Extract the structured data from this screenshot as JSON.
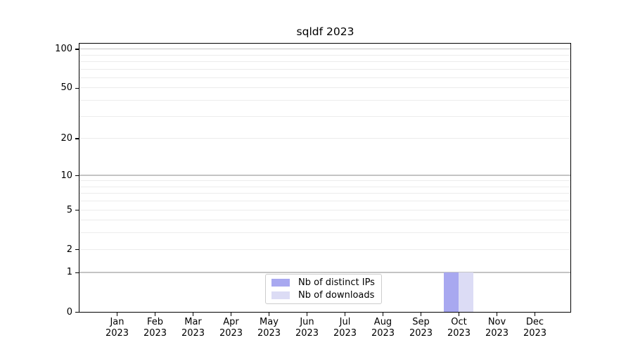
{
  "chart_data": {
    "type": "bar",
    "title": "sqldf 2023",
    "xlabel": "",
    "ylabel": "",
    "yscale": "log1p",
    "ylim": [
      0,
      110
    ],
    "grid": "on",
    "y_ticks": [
      0,
      1,
      2,
      5,
      10,
      20,
      50,
      100
    ],
    "y_gridlines_major": [
      1,
      10,
      100
    ],
    "y_gridlines_minor": [
      2,
      3,
      4,
      5,
      6,
      7,
      8,
      9,
      20,
      30,
      40,
      50,
      60,
      70,
      80,
      90
    ],
    "grid_major_color": "#c4c4c4",
    "grid_minor_color": "#ececec",
    "categories": [
      "Jan 2023",
      "Feb 2023",
      "Mar 2023",
      "Apr 2023",
      "May 2023",
      "Jun 2023",
      "Jul 2023",
      "Aug 2023",
      "Sep 2023",
      "Oct 2023",
      "Nov 2023",
      "Dec 2023"
    ],
    "series": [
      {
        "name": "Nb of distinct IPs",
        "color": "#a8a8f0",
        "values": [
          0,
          0,
          0,
          0,
          0,
          0,
          0,
          0,
          0,
          1,
          0,
          0
        ]
      },
      {
        "name": "Nb of downloads",
        "color": "#dcdcf5",
        "values": [
          0,
          0,
          0,
          0,
          0,
          0,
          0,
          0,
          0,
          1,
          0,
          0
        ]
      }
    ],
    "legend_position": "lower center"
  }
}
